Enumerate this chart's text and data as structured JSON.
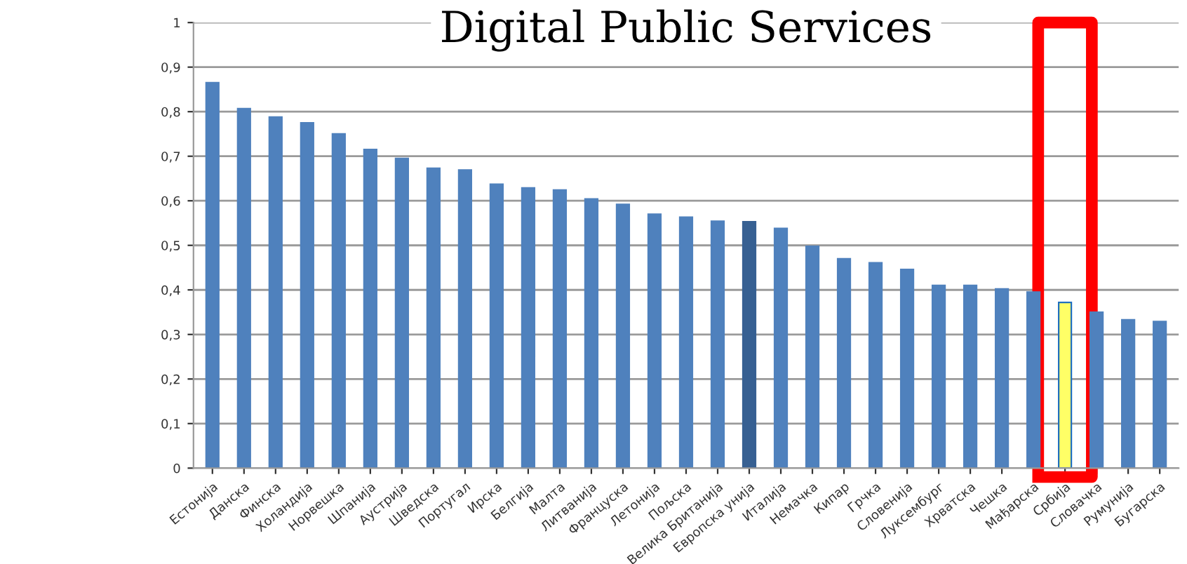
{
  "chart_data": {
    "type": "bar",
    "title": "Digital Public Services",
    "categories": [
      "Естонија",
      "Данска",
      "Финска",
      "Холандија",
      "Норвешка",
      "Шпанија",
      "Аустрија",
      "Шведска",
      "Португал",
      "Ирска",
      "Белгија",
      "Малта",
      "Литванија",
      "Француска",
      "Летонија",
      "Пољска",
      "Велика Британија",
      "Европска унија",
      "Италија",
      "Немачка",
      "Кипар",
      "Грчка",
      "Словенија",
      "Луксембург",
      "Хрватска",
      "Чешка",
      "Мађарска",
      "Србија",
      "Словачка",
      "Румунија",
      "Бугарска"
    ],
    "values": [
      0.865,
      0.807,
      0.788,
      0.775,
      0.75,
      0.715,
      0.695,
      0.673,
      0.669,
      0.637,
      0.629,
      0.624,
      0.604,
      0.592,
      0.57,
      0.563,
      0.554,
      0.553,
      0.538,
      0.498,
      0.47,
      0.461,
      0.446,
      0.41,
      0.41,
      0.402,
      0.395,
      0.372,
      0.35,
      0.333,
      0.329
    ],
    "colors": [
      "#4f81bd",
      "#4f81bd",
      "#4f81bd",
      "#4f81bd",
      "#4f81bd",
      "#4f81bd",
      "#4f81bd",
      "#4f81bd",
      "#4f81bd",
      "#4f81bd",
      "#4f81bd",
      "#4f81bd",
      "#4f81bd",
      "#4f81bd",
      "#4f81bd",
      "#4f81bd",
      "#4f81bd",
      "#376092",
      "#4f81bd",
      "#4f81bd",
      "#4f81bd",
      "#4f81bd",
      "#4f81bd",
      "#4f81bd",
      "#4f81bd",
      "#4f81bd",
      "#4f81bd",
      "#ffff66",
      "#4f81bd",
      "#4f81bd",
      "#4f81bd"
    ],
    "ylim": [
      0,
      1
    ],
    "yticks": [
      {
        "value": 0,
        "label": "0"
      },
      {
        "value": 0.1,
        "label": "0,1"
      },
      {
        "value": 0.2,
        "label": "0,2"
      },
      {
        "value": 0.3,
        "label": "0,3"
      },
      {
        "value": 0.4,
        "label": "0,4"
      },
      {
        "value": 0.5,
        "label": "0,5"
      },
      {
        "value": 0.6,
        "label": "0,6"
      },
      {
        "value": 0.7,
        "label": "0,7"
      },
      {
        "value": 0.8,
        "label": "0,8"
      },
      {
        "value": 0.9,
        "label": "0,9"
      },
      {
        "value": 1,
        "label": "1"
      }
    ],
    "grid": "y"
  }
}
